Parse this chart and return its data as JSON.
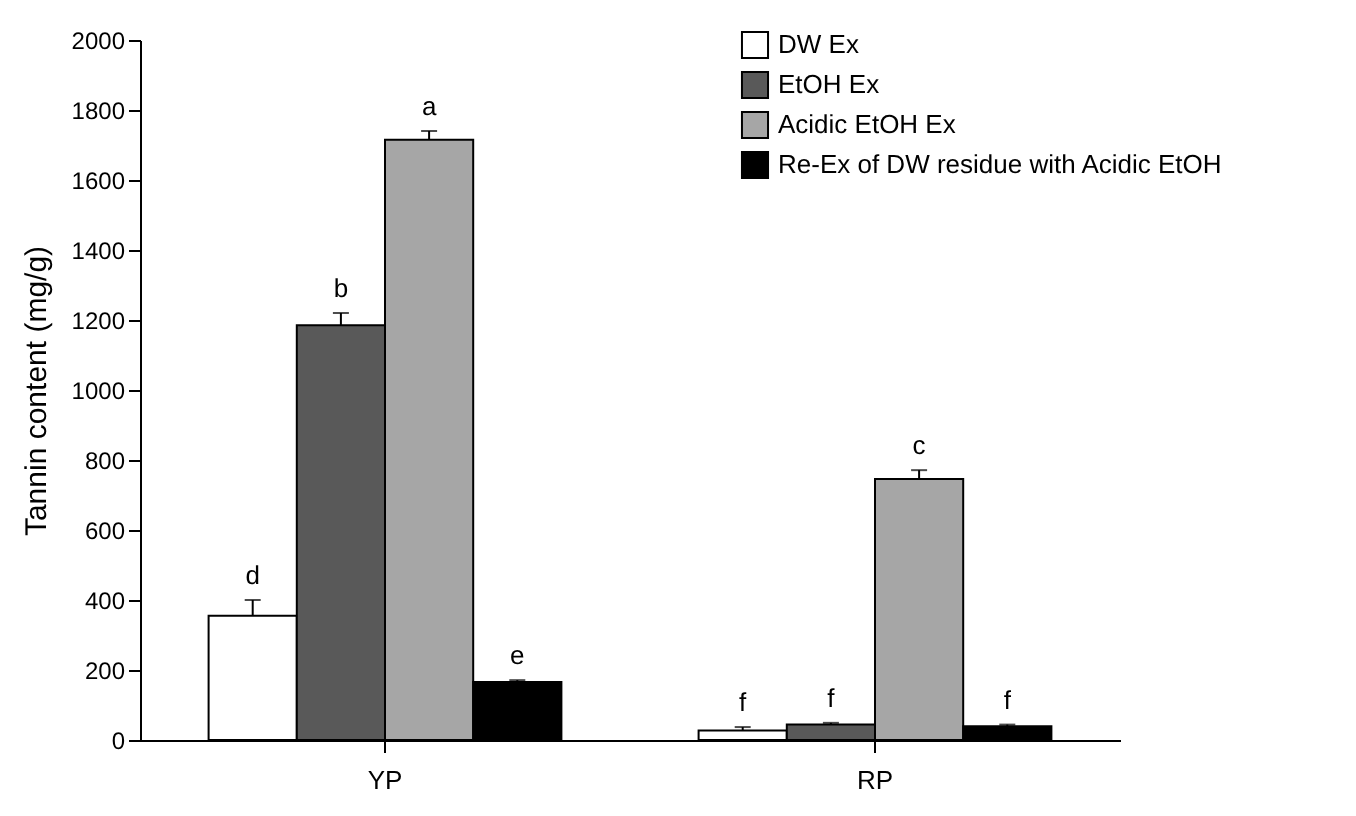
{
  "chart_data": {
    "type": "bar",
    "ylabel": "Tannin content (mg/g)",
    "categories": [
      "YP",
      "RP"
    ],
    "series": [
      {
        "name": "DW  Ex",
        "color": "#ffffff",
        "values": [
          355,
          27
        ],
        "errors": [
          45,
          10
        ],
        "value_labels": [
          "d",
          "f"
        ]
      },
      {
        "name": "EtOH  Ex",
        "color": "#595959",
        "values": [
          1185,
          44
        ],
        "errors": [
          35,
          5
        ],
        "value_labels": [
          "b",
          "f"
        ]
      },
      {
        "name": "Acidic  EtOH  Ex",
        "color": "#a6a6a6",
        "values": [
          1715,
          746
        ],
        "errors": [
          25,
          25
        ],
        "value_labels": [
          "a",
          "c"
        ]
      },
      {
        "name": "Re-Ex  of  DW  residue  with  Acidic  EtOH",
        "color": "#000000",
        "values": [
          166,
          39
        ],
        "errors": [
          5,
          5
        ],
        "value_labels": [
          "e",
          "f"
        ]
      }
    ],
    "ylim": [
      0,
      2000
    ],
    "yticks": [
      0,
      200,
      400,
      600,
      800,
      1000,
      1200,
      1400,
      1600,
      1800,
      2000
    ],
    "grid": false,
    "legend": "top right"
  }
}
